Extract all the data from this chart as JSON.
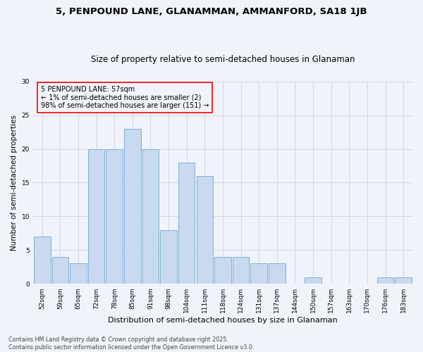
{
  "title1": "5, PENPOUND LANE, GLANAMMAN, AMMANFORD, SA18 1JB",
  "title2": "Size of property relative to semi-detached houses in Glanaman",
  "xlabel": "Distribution of semi-detached houses by size in Glanaman",
  "ylabel": "Number of semi-detached properties",
  "categories": [
    "52sqm",
    "59sqm",
    "65sqm",
    "72sqm",
    "78sqm",
    "85sqm",
    "91sqm",
    "98sqm",
    "104sqm",
    "111sqm",
    "118sqm",
    "124sqm",
    "131sqm",
    "137sqm",
    "144sqm",
    "150sqm",
    "157sqm",
    "163sqm",
    "170sqm",
    "176sqm",
    "183sqm"
  ],
  "values": [
    7,
    4,
    3,
    20,
    20,
    23,
    20,
    8,
    18,
    16,
    4,
    4,
    3,
    3,
    0,
    1,
    0,
    0,
    0,
    1,
    1
  ],
  "bar_color": "#c9d9f0",
  "bar_edge_color": "#7aafd4",
  "annotation_text": "5 PENPOUND LANE: 57sqm\n← 1% of semi-detached houses are smaller (2)\n98% of semi-detached houses are larger (151) →",
  "ylim": [
    0,
    30
  ],
  "yticks": [
    0,
    5,
    10,
    15,
    20,
    25,
    30
  ],
  "footer_line1": "Contains HM Land Registry data © Crown copyright and database right 2025.",
  "footer_line2": "Contains public sector information licensed under the Open Government Licence v3.0.",
  "bg_color": "#f0f4fa",
  "grid_color": "#d0d8e8",
  "title1_fontsize": 9.5,
  "title2_fontsize": 8.5,
  "xlabel_fontsize": 8,
  "ylabel_fontsize": 7.5,
  "tick_fontsize": 6.5,
  "annotation_fontsize": 7,
  "footer_fontsize": 5.8
}
